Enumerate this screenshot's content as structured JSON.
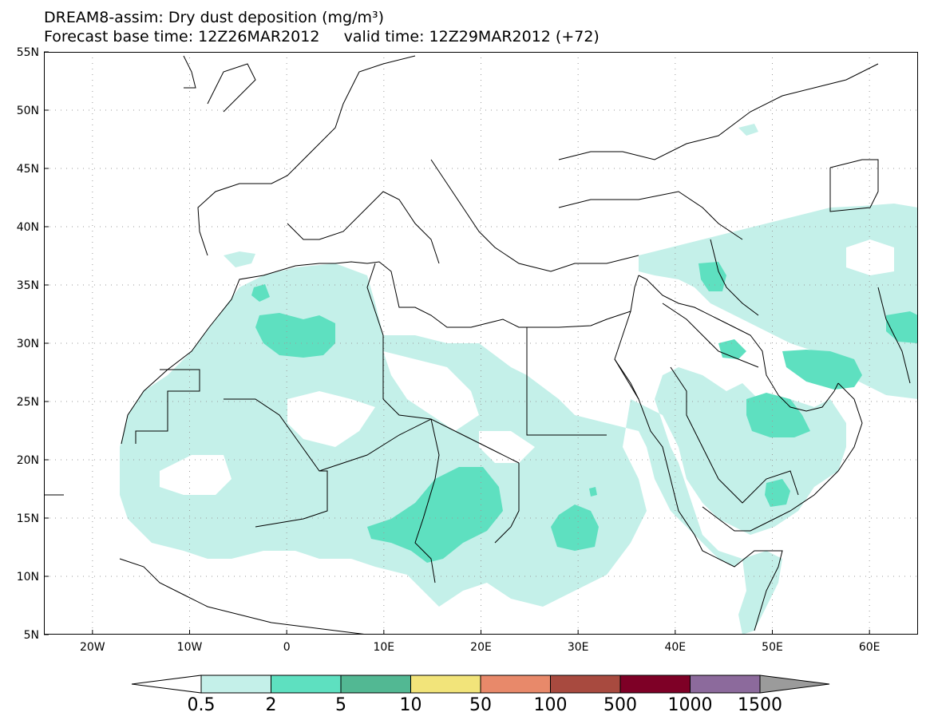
{
  "title": {
    "line1": "DREAM8-assim: Dry dust deposition (mg/m³)",
    "line2": "Forecast base time: 12Z26MAR2012     valid time: 12Z29MAR2012 (+72)"
  },
  "axes": {
    "lat_labels": [
      "55N",
      "50N",
      "45N",
      "40N",
      "35N",
      "30N",
      "25N",
      "20N",
      "15N",
      "10N",
      "5N"
    ],
    "lat_values": [
      55,
      50,
      45,
      40,
      35,
      30,
      25,
      20,
      15,
      10,
      5
    ],
    "lon_labels": [
      "20W",
      "10W",
      "0",
      "10E",
      "20E",
      "30E",
      "40E",
      "50E",
      "60E"
    ],
    "lon_values": [
      -20,
      -10,
      0,
      10,
      20,
      30,
      40,
      50,
      60
    ],
    "lon_range": [
      -25,
      65
    ],
    "lat_range": [
      5,
      55
    ],
    "grid": "dotted"
  },
  "colorbar": {
    "labels": [
      "0.5",
      "2",
      "5",
      "10",
      "50",
      "100",
      "500",
      "1000",
      "1500"
    ],
    "colors": [
      "#c4f0e9",
      "#5ee0c0",
      "#52b893",
      "#f2e47a",
      "#e8896a",
      "#a84a3f",
      "#7e0026",
      "#8c6a9c"
    ],
    "under_color": "#ffffff",
    "over_color": "#9b9b9b"
  },
  "colors": {
    "level1": "#c4f0e9",
    "level2": "#5ee0c0",
    "coast": "#000000"
  }
}
